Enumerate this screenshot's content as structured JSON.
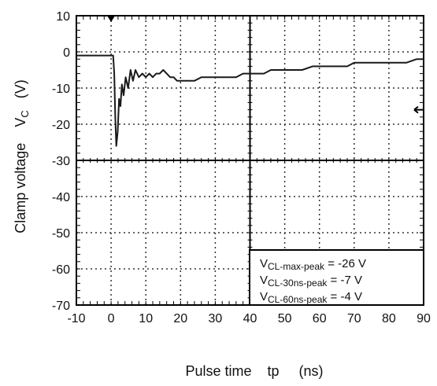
{
  "chart_data": {
    "type": "line",
    "xlabel": "Pulse time    tp     (ns)",
    "ylabel": {
      "text": "Clamp voltage    V",
      "subscript": "C",
      "unit": "   (V)"
    },
    "xlim": [
      -10,
      90
    ],
    "ylim": [
      -70,
      10
    ],
    "x_ticks": [
      "-10",
      "0",
      "10",
      "20",
      "30",
      "40",
      "50",
      "60",
      "70",
      "80",
      "90"
    ],
    "y_ticks": [
      "10",
      "0",
      "-10",
      "-20",
      "-30",
      "-40",
      "-50",
      "-60",
      "-70"
    ],
    "grid": true,
    "series": [
      {
        "points": [
          [
            -10,
            -1
          ],
          [
            -8,
            -1
          ],
          [
            -6,
            -1
          ],
          [
            -4,
            -1
          ],
          [
            -2,
            -1
          ],
          [
            0,
            -1
          ],
          [
            0.6,
            -1
          ],
          [
            0.9,
            -6
          ],
          [
            1.2,
            -18
          ],
          [
            1.5,
            -26
          ],
          [
            1.9,
            -22
          ],
          [
            2.3,
            -13
          ],
          [
            2.7,
            -15
          ],
          [
            3.1,
            -9
          ],
          [
            3.6,
            -12
          ],
          [
            4.2,
            -7
          ],
          [
            4.9,
            -10
          ],
          [
            5.6,
            -5
          ],
          [
            6.3,
            -8
          ],
          [
            7,
            -5
          ],
          [
            8,
            -7
          ],
          [
            9,
            -6
          ],
          [
            10,
            -7
          ],
          [
            11,
            -6
          ],
          [
            12,
            -7
          ],
          [
            13,
            -6
          ],
          [
            14,
            -6
          ],
          [
            15,
            -5
          ],
          [
            16,
            -6
          ],
          [
            17,
            -7
          ],
          [
            18,
            -7
          ],
          [
            19,
            -8
          ],
          [
            20,
            -8
          ],
          [
            22,
            -8
          ],
          [
            24,
            -8
          ],
          [
            26,
            -7
          ],
          [
            28,
            -7
          ],
          [
            30,
            -7
          ],
          [
            32,
            -7
          ],
          [
            34,
            -7
          ],
          [
            36,
            -7
          ],
          [
            38,
            -6
          ],
          [
            40,
            -6
          ],
          [
            42,
            -6
          ],
          [
            44,
            -6
          ],
          [
            46,
            -5
          ],
          [
            48,
            -5
          ],
          [
            50,
            -5
          ],
          [
            52,
            -5
          ],
          [
            55,
            -5
          ],
          [
            58,
            -4
          ],
          [
            60,
            -4
          ],
          [
            62,
            -4
          ],
          [
            65,
            -4
          ],
          [
            68,
            -4
          ],
          [
            70,
            -3
          ],
          [
            72,
            -3
          ],
          [
            75,
            -3
          ],
          [
            78,
            -3
          ],
          [
            80,
            -3
          ],
          [
            82,
            -3
          ],
          [
            85,
            -3
          ],
          [
            88,
            -2
          ],
          [
            90,
            -2
          ]
        ]
      }
    ],
    "annotations": [
      {
        "prefix": "V",
        "subscript": "CL-max-peak",
        "suffix": " = -26 V"
      },
      {
        "prefix": "V",
        "subscript": "CL-30ns-peak",
        "suffix": " = -7 V"
      },
      {
        "prefix": "V",
        "subscript": "CL-60ns-peak",
        "suffix": " = -4 V"
      }
    ],
    "markers": {
      "trigger_marker_x": 0,
      "level_marker_y": -16
    },
    "colors": {
      "line": "#1a1a1a",
      "grid": "#333333",
      "frame": "#000000"
    }
  }
}
